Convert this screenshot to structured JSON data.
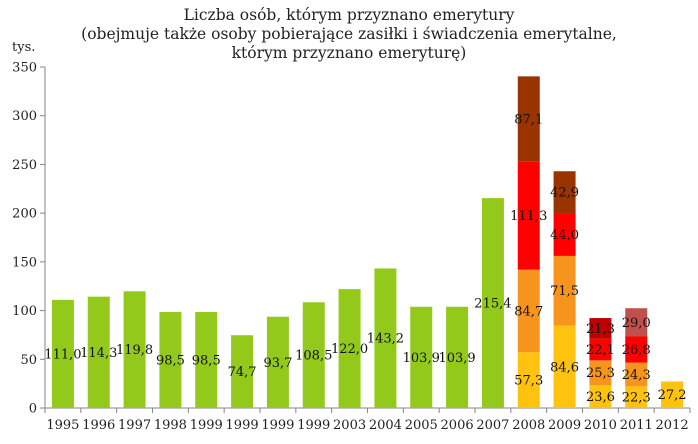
{
  "chart_data": {
    "type": "bar",
    "title_lines": [
      "Liczba osób, którym przyznano emerytury",
      "(obejmuje także osoby pobierające zasiłki i świadczenia emerytalne,",
      "którym przyznano emeryturę)"
    ],
    "unit_label": "tys.",
    "ylim": [
      0,
      350
    ],
    "yticks": [
      "0",
      "50",
      "100",
      "150",
      "200",
      "250",
      "300",
      "350"
    ],
    "grid": false,
    "categories": [
      "1995",
      "1996",
      "1997",
      "1998",
      "1999",
      "1999",
      "1999",
      "1999",
      "2003",
      "2004",
      "2005",
      "2006",
      "2007",
      "2008",
      "2009",
      "2010",
      "2011",
      "2012"
    ],
    "bars": [
      {
        "segments": [
          {
            "value": 111.0,
            "label": "111,0",
            "color": "#92c91a"
          }
        ]
      },
      {
        "segments": [
          {
            "value": 114.3,
            "label": "114,3",
            "color": "#92c91a"
          }
        ]
      },
      {
        "segments": [
          {
            "value": 119.8,
            "label": "119,8",
            "color": "#92c91a"
          }
        ]
      },
      {
        "segments": [
          {
            "value": 98.5,
            "label": "98,5",
            "color": "#92c91a"
          }
        ]
      },
      {
        "segments": [
          {
            "value": 98.5,
            "label": "98,5",
            "color": "#92c91a"
          }
        ]
      },
      {
        "segments": [
          {
            "value": 74.7,
            "label": "74,7",
            "color": "#92c91a"
          }
        ]
      },
      {
        "segments": [
          {
            "value": 93.7,
            "label": "93,7",
            "color": "#92c91a"
          }
        ]
      },
      {
        "segments": [
          {
            "value": 108.5,
            "label": "108,5",
            "color": "#92c91a"
          }
        ]
      },
      {
        "segments": [
          {
            "value": 122.0,
            "label": "122,0",
            "color": "#92c91a"
          }
        ]
      },
      {
        "segments": [
          {
            "value": 143.2,
            "label": "143,2",
            "color": "#92c91a"
          }
        ]
      },
      {
        "segments": [
          {
            "value": 103.9,
            "label": "103,9",
            "color": "#92c91a"
          }
        ]
      },
      {
        "segments": [
          {
            "value": 103.9,
            "label": "103,9",
            "color": "#92c91a"
          }
        ]
      },
      {
        "segments": [
          {
            "value": 215.4,
            "label": "215,4",
            "color": "#92c91a"
          }
        ]
      },
      {
        "segments": [
          {
            "value": 57.3,
            "label": "57,3",
            "color": "#ffc20e"
          },
          {
            "value": 84.7,
            "label": "84,7",
            "color": "#f7941d"
          },
          {
            "value": 111.3,
            "label": "111,3",
            "color": "#ff0000"
          },
          {
            "value": 87.1,
            "label": "87,1",
            "color": "#993300"
          }
        ]
      },
      {
        "segments": [
          {
            "value": 84.6,
            "label": "84,6",
            "color": "#ffc20e"
          },
          {
            "value": 71.5,
            "label": "71,5",
            "color": "#f7941d"
          },
          {
            "value": 44.0,
            "label": "44,0",
            "color": "#ff0000"
          },
          {
            "value": 42.9,
            "label": "42,9",
            "color": "#993300"
          }
        ]
      },
      {
        "segments": [
          {
            "value": 23.6,
            "label": "23,6",
            "color": "#ffc20e"
          },
          {
            "value": 25.3,
            "label": "25,3",
            "color": "#f7941d"
          },
          {
            "value": 22.1,
            "label": "22,1",
            "color": "#ff0000"
          },
          {
            "value": 21.3,
            "label": "21,3",
            "color": "#c00000"
          }
        ]
      },
      {
        "segments": [
          {
            "value": 22.3,
            "label": "22,3",
            "color": "#ffc20e"
          },
          {
            "value": 24.3,
            "label": "24,3",
            "color": "#f7941d"
          },
          {
            "value": 26.8,
            "label": "26,8",
            "color": "#ff0000"
          },
          {
            "value": 29.0,
            "label": "29,0",
            "color": "#c0504d"
          }
        ]
      },
      {
        "segments": [
          {
            "value": 27.2,
            "label": "27,2",
            "color": "#ffc20e"
          }
        ]
      }
    ]
  }
}
